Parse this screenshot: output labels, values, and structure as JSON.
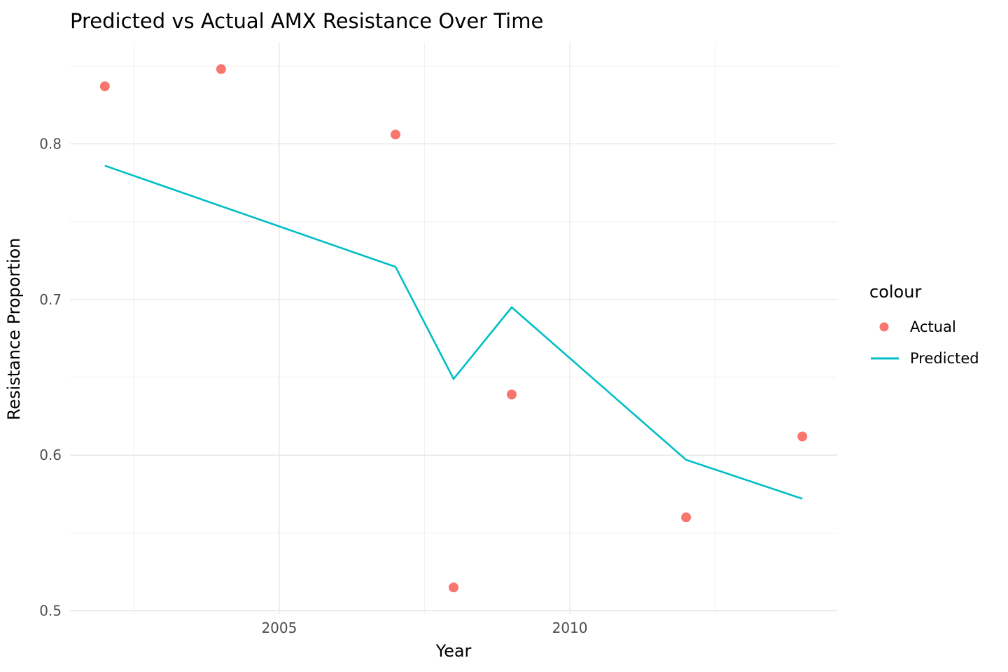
{
  "chart_data": {
    "type": "line",
    "title": "Predicted vs Actual AMX Resistance Over Time",
    "xlabel": "Year",
    "ylabel": "Resistance Proportion",
    "xlim": [
      2001.4,
      2014.6
    ],
    "ylim": [
      0.498,
      0.865
    ],
    "x_ticks": [
      2005,
      2010
    ],
    "x_minor_ticks": [
      2002.5,
      2007.5,
      2012.5
    ],
    "y_ticks": [
      0.5,
      0.6,
      0.7,
      0.8
    ],
    "y_minor_ticks": [
      0.55,
      0.65,
      0.75,
      0.85
    ],
    "grid": true,
    "legend": {
      "title": "colour",
      "position": "right",
      "items": [
        {
          "label": "Actual",
          "swatch": "point",
          "color": "#F8766D"
        },
        {
          "label": "Predicted",
          "swatch": "line",
          "color": "#00BFC4"
        }
      ]
    },
    "series": [
      {
        "name": "Actual",
        "kind": "scatter",
        "color": "#F8766D",
        "x": [
          2002,
          2004,
          2007,
          2008,
          2009,
          2012,
          2014
        ],
        "y": [
          0.837,
          0.848,
          0.806,
          0.515,
          0.639,
          0.56,
          0.612
        ]
      },
      {
        "name": "Predicted",
        "kind": "line",
        "color": "#00BFC4",
        "x": [
          2002,
          2007,
          2008,
          2009,
          2012,
          2014
        ],
        "y": [
          0.786,
          0.721,
          0.649,
          0.695,
          0.597,
          0.572
        ]
      }
    ]
  },
  "colors": {
    "background": "#ffffff",
    "grid_major": "#e5e5e5",
    "grid_minor": "#f0f0f0",
    "tick_label": "#4d4d4d",
    "actual": "#F8766D",
    "predicted": "#00BFC4"
  }
}
